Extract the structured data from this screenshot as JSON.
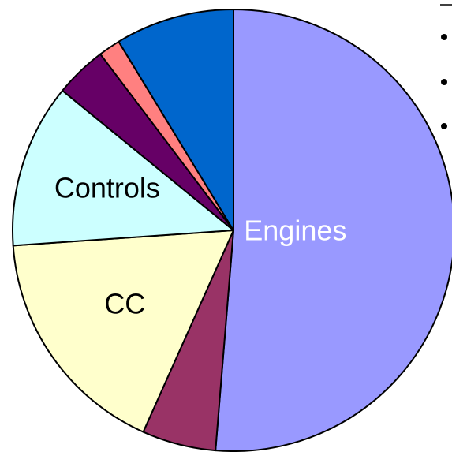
{
  "chart_data": {
    "type": "pie",
    "categories": [
      "Engines",
      null,
      "CC",
      "Controls",
      null,
      null,
      null
    ],
    "values": [
      51.3,
      5.4,
      17.2,
      12,
      3.8,
      1.6,
      8.7
    ],
    "colors": [
      "#9999ff",
      "#993366",
      "#ffffcc",
      "#ccffff",
      "#660066",
      "#ff8080",
      "#0066cc"
    ],
    "start_angle": 0,
    "direction": "clockwise"
  }
}
